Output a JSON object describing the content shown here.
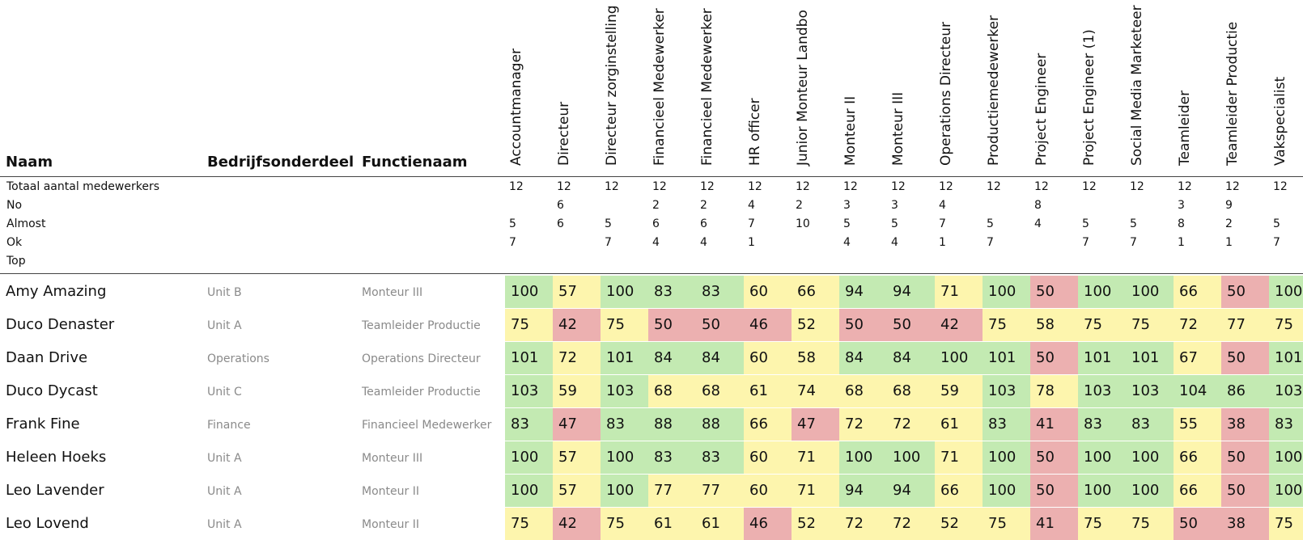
{
  "headers": {
    "naam": "Naam",
    "bedrijfsonderdeel": "Bedrijfsonderdeel",
    "functienaam": "Functienaam"
  },
  "colors": {
    "green": "#c3eab2",
    "yellow": "#fdf5ad",
    "red": "#ecb0b0"
  },
  "roles": [
    "Accountmanager",
    "Directeur",
    "Directeur zorginstelling",
    "Financieel Medewerker",
    "Financieel Medewerker",
    "HR officer",
    "Junior Monteur Landbo",
    "Monteur II",
    "Monteur III",
    "Operations Directeur",
    "Productiemedewerker",
    "Project Engineer",
    "Project Engineer (1)",
    "Social Media Marketeer",
    "Teamleider",
    "Teamleider Productie",
    "Vakspecialist"
  ],
  "summary": [
    {
      "label": "Totaal aantal medewerkers",
      "values": [
        "12",
        "12",
        "12",
        "12",
        "12",
        "12",
        "12",
        "12",
        "12",
        "12",
        "12",
        "12",
        "12",
        "12",
        "12",
        "12",
        "12"
      ]
    },
    {
      "label": "No",
      "values": [
        "",
        "6",
        "",
        "2",
        "2",
        "4",
        "2",
        "3",
        "3",
        "4",
        "",
        "8",
        "",
        "",
        "3",
        "9",
        ""
      ]
    },
    {
      "label": "Almost",
      "values": [
        "5",
        "6",
        "5",
        "6",
        "6",
        "7",
        "10",
        "5",
        "5",
        "7",
        "5",
        "4",
        "5",
        "5",
        "8",
        "2",
        "5"
      ]
    },
    {
      "label": "Ok",
      "values": [
        "7",
        "",
        "7",
        "4",
        "4",
        "1",
        "",
        "4",
        "4",
        "1",
        "7",
        "",
        "7",
        "7",
        "1",
        "1",
        "7"
      ]
    },
    {
      "label": "Top",
      "values": [
        "",
        "",
        "",
        "",
        "",
        "",
        "",
        "",
        "",
        "",
        "",
        "",
        "",
        "",
        "",
        "",
        ""
      ]
    }
  ],
  "people": [
    {
      "name": "Amy Amazing",
      "unit": "Unit B",
      "function": "Monteur III",
      "scores": [
        "100",
        "57",
        "100",
        "83",
        "83",
        "60",
        "66",
        "94",
        "94",
        "71",
        "100",
        "50",
        "100",
        "100",
        "66",
        "50",
        "100"
      ],
      "levels": [
        "g",
        "y",
        "g",
        "g",
        "g",
        "y",
        "y",
        "g",
        "g",
        "y",
        "g",
        "r",
        "g",
        "g",
        "y",
        "r",
        "g"
      ]
    },
    {
      "name": "Duco Denaster",
      "unit": "Unit A",
      "function": "Teamleider Productie",
      "scores": [
        "75",
        "42",
        "75",
        "50",
        "50",
        "46",
        "52",
        "50",
        "50",
        "42",
        "75",
        "58",
        "75",
        "75",
        "72",
        "77",
        "75"
      ],
      "levels": [
        "y",
        "r",
        "y",
        "r",
        "r",
        "r",
        "y",
        "r",
        "r",
        "r",
        "y",
        "y",
        "y",
        "y",
        "y",
        "y",
        "y"
      ]
    },
    {
      "name": "Daan Drive",
      "unit": "Operations",
      "function": "Operations Directeur",
      "scores": [
        "101",
        "72",
        "101",
        "84",
        "84",
        "60",
        "58",
        "84",
        "84",
        "100",
        "101",
        "50",
        "101",
        "101",
        "67",
        "50",
        "101"
      ],
      "levels": [
        "g",
        "y",
        "g",
        "g",
        "g",
        "y",
        "y",
        "g",
        "g",
        "g",
        "g",
        "r",
        "g",
        "g",
        "y",
        "r",
        "g"
      ]
    },
    {
      "name": "Duco Dycast",
      "unit": "Unit C",
      "function": "Teamleider Productie",
      "scores": [
        "103",
        "59",
        "103",
        "68",
        "68",
        "61",
        "74",
        "68",
        "68",
        "59",
        "103",
        "78",
        "103",
        "103",
        "104",
        "86",
        "103"
      ],
      "levels": [
        "g",
        "y",
        "g",
        "y",
        "y",
        "y",
        "y",
        "y",
        "y",
        "y",
        "g",
        "y",
        "g",
        "g",
        "g",
        "g",
        "g"
      ]
    },
    {
      "name": "Frank Fine",
      "unit": "Finance",
      "function": "Financieel Medewerker",
      "scores": [
        "83",
        "47",
        "83",
        "88",
        "88",
        "66",
        "47",
        "72",
        "72",
        "61",
        "83",
        "41",
        "83",
        "83",
        "55",
        "38",
        "83"
      ],
      "levels": [
        "g",
        "r",
        "g",
        "g",
        "g",
        "y",
        "r",
        "y",
        "y",
        "y",
        "g",
        "r",
        "g",
        "g",
        "y",
        "r",
        "g"
      ]
    },
    {
      "name": "Heleen Hoeks",
      "unit": "Unit A",
      "function": "Monteur III",
      "scores": [
        "100",
        "57",
        "100",
        "83",
        "83",
        "60",
        "71",
        "100",
        "100",
        "71",
        "100",
        "50",
        "100",
        "100",
        "66",
        "50",
        "100"
      ],
      "levels": [
        "g",
        "y",
        "g",
        "g",
        "g",
        "y",
        "y",
        "g",
        "g",
        "y",
        "g",
        "r",
        "g",
        "g",
        "y",
        "r",
        "g"
      ]
    },
    {
      "name": "Leo Lavender",
      "unit": "Unit A",
      "function": "Monteur II",
      "scores": [
        "100",
        "57",
        "100",
        "77",
        "77",
        "60",
        "71",
        "94",
        "94",
        "66",
        "100",
        "50",
        "100",
        "100",
        "66",
        "50",
        "100"
      ],
      "levels": [
        "g",
        "y",
        "g",
        "y",
        "y",
        "y",
        "y",
        "g",
        "g",
        "y",
        "g",
        "r",
        "g",
        "g",
        "y",
        "r",
        "g"
      ]
    },
    {
      "name": "Leo Lovend",
      "unit": "Unit A",
      "function": "Monteur II",
      "scores": [
        "75",
        "42",
        "75",
        "61",
        "61",
        "46",
        "52",
        "72",
        "72",
        "52",
        "75",
        "41",
        "75",
        "75",
        "50",
        "38",
        "75"
      ],
      "levels": [
        "y",
        "r",
        "y",
        "y",
        "y",
        "r",
        "y",
        "y",
        "y",
        "y",
        "y",
        "r",
        "y",
        "y",
        "r",
        "r",
        "y"
      ]
    }
  ]
}
